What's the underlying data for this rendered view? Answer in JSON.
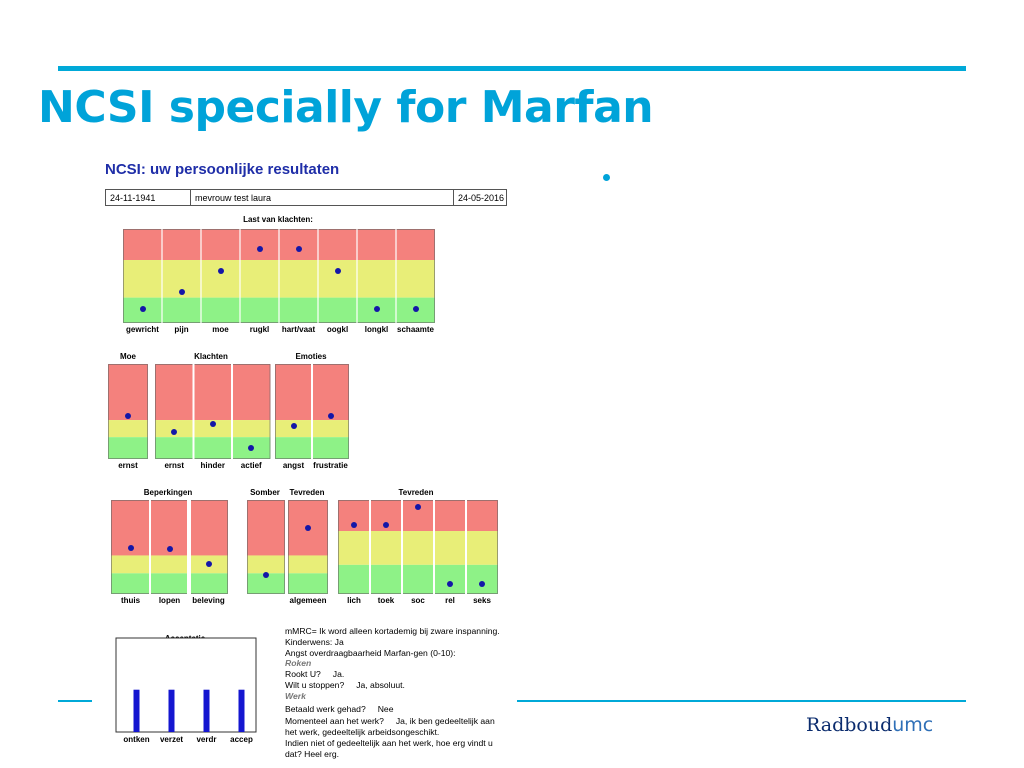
{
  "slide": {
    "title": "NCSI specially for Marfan",
    "logo": {
      "main": "Radboud",
      "suffix": "umc"
    },
    "colors": {
      "accent": "#00a9d8",
      "title": "#00a3d9",
      "red": "#f4817d",
      "yellow": "#e8ee78",
      "green": "#8ef287",
      "dot": "#1416a8"
    }
  },
  "report": {
    "title": "NCSI: uw persoonlijke resultaten",
    "birthdate": "24-11-1941",
    "name": "mevrouw test laura",
    "date": "24-05-2016",
    "charts": [
      {
        "group": "Last van klachten:",
        "columns": [
          {
            "label": "gewricht",
            "value": 0.85
          },
          {
            "label": "pijn",
            "value": 0.67
          },
          {
            "label": "moe",
            "value": 0.45
          },
          {
            "label": "rugkl",
            "value": 0.21
          },
          {
            "label": "hart/vaat",
            "value": 0.21
          },
          {
            "label": "oogkl",
            "value": 0.45
          },
          {
            "label": "longkl",
            "value": 0.85
          },
          {
            "label": "schaamte",
            "value": 0.85
          }
        ]
      },
      {
        "group": "Moe",
        "columns": [
          {
            "label": "ernst",
            "value": 0.55
          }
        ]
      },
      {
        "group": "Klachten",
        "columns": [
          {
            "label": "ernst",
            "value": 0.72
          },
          {
            "label": "hinder",
            "value": 0.63
          },
          {
            "label": "actief",
            "value": 0.88
          }
        ]
      },
      {
        "group": "Emoties",
        "columns": [
          {
            "label": "angst",
            "value": 0.65
          },
          {
            "label": "frustratie",
            "value": 0.55
          }
        ]
      },
      {
        "group": "Beperkingen",
        "columns": [
          {
            "label": "thuis",
            "value": 0.51
          },
          {
            "label": "lopen",
            "value": 0.52
          },
          {
            "label": "beleving",
            "value": 0.68
          }
        ]
      },
      {
        "group": "Somber",
        "columns": [
          {
            "label": "",
            "value": 0.8
          }
        ]
      },
      {
        "group": "Tevreden",
        "columns": [
          {
            "label": "algemeen",
            "value": 0.3
          }
        ]
      },
      {
        "group": "Tevreden",
        "columns": [
          {
            "label": "lich",
            "value": 0.27
          },
          {
            "label": "toek",
            "value": 0.27
          },
          {
            "label": "soc",
            "value": 0.07
          },
          {
            "label": "rel",
            "value": 0.89
          },
          {
            "label": "seks",
            "value": 0.89
          }
        ]
      }
    ],
    "acceptatie": {
      "title": "Acceptatie",
      "columns": [
        {
          "label": "ontken",
          "value": 0.55
        },
        {
          "label": "verzet",
          "value": 0.55
        },
        {
          "label": "verdr",
          "value": 0.55
        },
        {
          "label": "accep",
          "value": 0.55
        }
      ]
    },
    "notes": {
      "mmrc": "mMRC= Ik word alleen kortademig bij zware inspanning.",
      "kinderwens": "Kinderwens: Ja",
      "angst": "Angst overdraagbaarheid Marfan-gen (0-10):",
      "roken_head": "Roken",
      "rookt_q": "Rookt U?",
      "rookt_a": "Ja.",
      "stoppen_q": "Wilt u stoppen?",
      "stoppen_a": "Ja, absoluut.",
      "werk_head": "Werk",
      "betaald_q": "Betaald werk gehad?",
      "betaald_a": "Nee",
      "momenteel_q": "Momenteel aan het werk?",
      "momenteel_a": "Ja, ik ben gedeeltelijk aan het werk, gedeeltelijk arbeidsongeschikt.",
      "indien": "Indien niet of gedeeltelijk aan het werk, hoe erg vindt u dat? Heel erg."
    }
  }
}
